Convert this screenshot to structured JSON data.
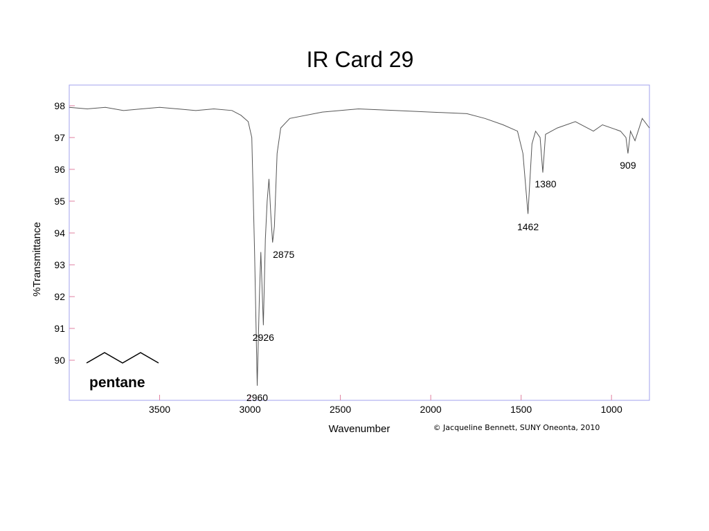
{
  "chart_data": {
    "type": "line",
    "title": "IR Card 29",
    "xlabel": "Wavenumber",
    "ylabel": "%Transmittance",
    "x": [
      4000,
      3900,
      3800,
      3700,
      3600,
      3500,
      3400,
      3300,
      3200,
      3100,
      3050,
      3010,
      2990,
      2975,
      2960,
      2948,
      2940,
      2926,
      2915,
      2905,
      2895,
      2885,
      2875,
      2865,
      2850,
      2830,
      2780,
      2600,
      2400,
      2200,
      2000,
      1800,
      1700,
      1600,
      1520,
      1490,
      1462,
      1440,
      1420,
      1395,
      1380,
      1365,
      1300,
      1200,
      1100,
      1050,
      950,
      920,
      909,
      895,
      870,
      830,
      790
    ],
    "values": [
      97.95,
      97.9,
      97.95,
      97.85,
      97.9,
      97.95,
      97.9,
      97.85,
      97.9,
      97.85,
      97.7,
      97.5,
      97.0,
      93.5,
      89.2,
      92.0,
      93.4,
      91.1,
      93.8,
      95.0,
      95.7,
      94.6,
      93.7,
      94.2,
      96.5,
      97.3,
      97.6,
      97.8,
      97.9,
      97.85,
      97.8,
      97.75,
      97.6,
      97.4,
      97.2,
      96.5,
      94.6,
      96.8,
      97.2,
      97.0,
      95.9,
      97.1,
      97.3,
      97.5,
      97.2,
      97.4,
      97.2,
      97.0,
      96.5,
      97.2,
      96.9,
      97.6,
      97.3
    ],
    "color": "#555555",
    "xlim": [
      4000,
      790
    ],
    "ylim": [
      88.74,
      98.65
    ],
    "xticks": [
      3500,
      3000,
      2500,
      2000,
      1500,
      1000
    ],
    "yticks": [
      90,
      91,
      92,
      93,
      94,
      95,
      96,
      97,
      98
    ],
    "annotations": [
      {
        "text": "2960",
        "x": 2960
      },
      {
        "text": "2926",
        "x": 2926
      },
      {
        "text": "2875",
        "x": 2875
      },
      {
        "text": "1462",
        "x": 1462
      },
      {
        "text": "1380",
        "x": 1380
      },
      {
        "text": "909",
        "x": 909
      }
    ],
    "molecule": "pentane",
    "credit": "© Jacqueline Bennett, SUNY Oneonta, 2010"
  }
}
